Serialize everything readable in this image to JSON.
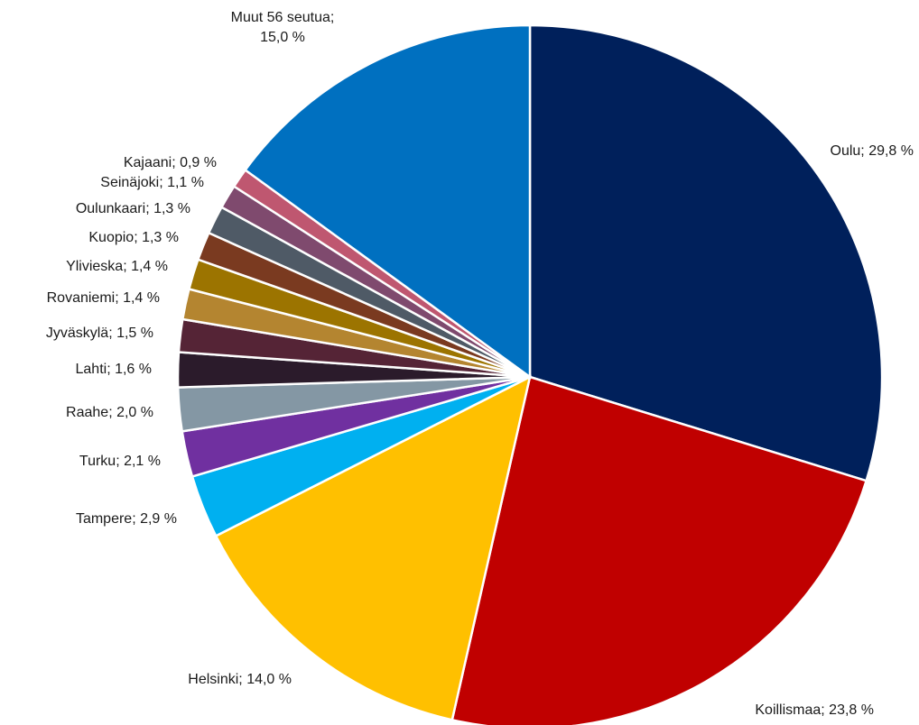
{
  "chart_data": {
    "type": "pie",
    "start": "top",
    "direction": "clockwise",
    "slices": [
      {
        "label": "Oulu; 29,8 %",
        "value": 29.8,
        "color": "#00205b"
      },
      {
        "label": "Koillismaa; 23,8 %",
        "value": 23.8,
        "color": "#c00000"
      },
      {
        "label": "Helsinki; 14,0 %",
        "value": 14.0,
        "color": "#ffc000"
      },
      {
        "label": "Tampere; 2,9 %",
        "value": 2.9,
        "color": "#00b0f0"
      },
      {
        "label": "Turku; 2,1 %",
        "value": 2.1,
        "color": "#7030a0"
      },
      {
        "label": "Raahe; 2,0 %",
        "value": 2.0,
        "color": "#8497a4"
      },
      {
        "label": "Lahti; 1,6 %",
        "value": 1.6,
        "color": "#2b1b2b"
      },
      {
        "label": "Jyväskylä; 1,5 %",
        "value": 1.5,
        "color": "#552436"
      },
      {
        "label": "Rovaniemi; 1,4 %",
        "value": 1.4,
        "color": "#b48530"
      },
      {
        "label": "Ylivieska; 1,4 %",
        "value": 1.4,
        "color": "#9c7400"
      },
      {
        "label": "Kuopio; 1,3 %",
        "value": 1.3,
        "color": "#7a3a20"
      },
      {
        "label": "Oulunkaari; 1,3 %",
        "value": 1.3,
        "color": "#4f5a66"
      },
      {
        "label": "Seinäjoki; 1,1 %",
        "value": 1.1,
        "color": "#7f4a6e"
      },
      {
        "label": "Kajaani; 0,9 %",
        "value": 0.9,
        "color": "#bf5770"
      },
      {
        "label": "Muut 56 seutua; 15,0 %",
        "value": 15.0,
        "color": "#0070c0"
      }
    ]
  }
}
